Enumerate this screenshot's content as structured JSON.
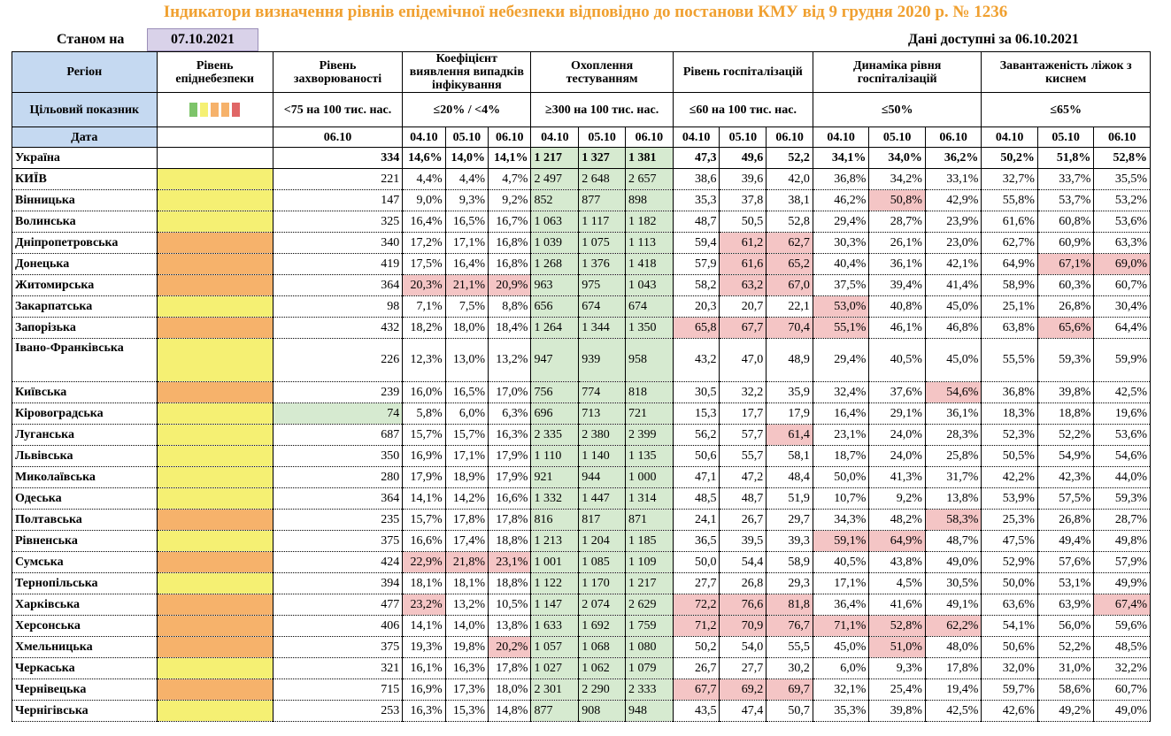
{
  "title": "Індикатори визначення рівнів епідемічної небезпеки відповідно до постанови КМУ від 9 грудня 2020 р. № 1236",
  "as_of_label": "Станом на",
  "as_of_date": "07.10.2021",
  "available_label": "Дані доступні за 06.10.2021",
  "headers": {
    "region": "Регіон",
    "level": "Рівень епіднебезпеки",
    "incidence": "Рівень захворюваності",
    "detection": "Коефіцієнт виявлення випадків інфікування",
    "testing": "Охоплення тестуванням",
    "hosp": "Рівень госпіталізацій",
    "hosp_dyn": "Динаміка рівня госпіталізацій",
    "oxygen": "Завантаженість ліжок з киснем",
    "target_label": "Цільовий показник",
    "incidence_target": "<75 на 100 тис. нас.",
    "detection_target": "≤20% / <4%",
    "testing_target": "≥300 на 100 тис. нас.",
    "hosp_target": "≤60 на 100 тис. нас.",
    "hosp_dyn_target": "≤50%",
    "oxygen_target": "≤65%",
    "date_label": "Дата",
    "d_inc": "06.10",
    "d1": "04.10",
    "d2": "05.10",
    "d3": "06.10"
  },
  "level_colors": [
    "#7dc46a",
    "#f5f073",
    "#f6b26b",
    "#f6b26b",
    "#e06666"
  ],
  "rows": [
    {
      "region": "Україна",
      "level": "",
      "inc": "334",
      "det": [
        "14,6%",
        "14,0%",
        "14,1%"
      ],
      "test": [
        "1 217",
        "1 327",
        "1 381"
      ],
      "hosp": [
        "47,3",
        "49,6",
        "52,2"
      ],
      "dyn": [
        "34,1%",
        "34,0%",
        "36,2%"
      ],
      "oxy": [
        "50,2%",
        "51,8%",
        "52,8%"
      ],
      "red": []
    },
    {
      "region": "КИЇВ",
      "level": "yellow",
      "inc": "221",
      "det": [
        "4,4%",
        "4,4%",
        "4,7%"
      ],
      "test": [
        "2 497",
        "2 648",
        "2 657"
      ],
      "hosp": [
        "38,6",
        "39,6",
        "42,0"
      ],
      "dyn": [
        "36,8%",
        "34,2%",
        "33,1%"
      ],
      "oxy": [
        "32,7%",
        "33,7%",
        "35,5%"
      ],
      "red": []
    },
    {
      "region": "Вінницька",
      "level": "yellow",
      "inc": "147",
      "det": [
        "9,0%",
        "9,3%",
        "9,2%"
      ],
      "test": [
        "852",
        "877",
        "898"
      ],
      "hosp": [
        "35,3",
        "37,8",
        "38,1"
      ],
      "dyn": [
        "46,2%",
        "50,8%",
        "42,9%"
      ],
      "oxy": [
        "55,8%",
        "53,7%",
        "53,2%"
      ],
      "red": [
        "dyn1"
      ]
    },
    {
      "region": "Волинська",
      "level": "yellow",
      "inc": "325",
      "det": [
        "16,4%",
        "16,5%",
        "16,7%"
      ],
      "test": [
        "1 063",
        "1 117",
        "1 182"
      ],
      "hosp": [
        "48,7",
        "50,5",
        "52,8"
      ],
      "dyn": [
        "29,4%",
        "28,7%",
        "23,9%"
      ],
      "oxy": [
        "61,6%",
        "60,8%",
        "53,6%"
      ],
      "red": []
    },
    {
      "region": "Дніпропетровська",
      "level": "orange",
      "inc": "340",
      "det": [
        "17,2%",
        "17,1%",
        "16,8%"
      ],
      "test": [
        "1 039",
        "1 075",
        "1 113"
      ],
      "hosp": [
        "59,4",
        "61,2",
        "62,7"
      ],
      "dyn": [
        "30,3%",
        "26,1%",
        "23,0%"
      ],
      "oxy": [
        "62,7%",
        "60,9%",
        "63,3%"
      ],
      "red": [
        "hosp1",
        "hosp2"
      ]
    },
    {
      "region": "Донецька",
      "level": "orange",
      "inc": "419",
      "det": [
        "17,5%",
        "16,4%",
        "16,8%"
      ],
      "test": [
        "1 268",
        "1 376",
        "1 418"
      ],
      "hosp": [
        "57,9",
        "61,6",
        "65,2"
      ],
      "dyn": [
        "40,4%",
        "36,1%",
        "42,1%"
      ],
      "oxy": [
        "64,9%",
        "67,1%",
        "69,0%"
      ],
      "red": [
        "hosp1",
        "hosp2",
        "oxy1",
        "oxy2"
      ]
    },
    {
      "region": "Житомирська",
      "level": "orange",
      "inc": "364",
      "det": [
        "20,3%",
        "21,1%",
        "20,9%"
      ],
      "test": [
        "963",
        "975",
        "1 043"
      ],
      "hosp": [
        "58,2",
        "63,2",
        "67,0"
      ],
      "dyn": [
        "37,5%",
        "39,4%",
        "41,4%"
      ],
      "oxy": [
        "58,9%",
        "60,3%",
        "60,7%"
      ],
      "red": [
        "det0",
        "det1",
        "det2",
        "hosp1",
        "hosp2"
      ]
    },
    {
      "region": "Закарпатська",
      "level": "yellow",
      "inc": "98",
      "det": [
        "7,1%",
        "7,5%",
        "8,8%"
      ],
      "test": [
        "656",
        "674",
        "674"
      ],
      "hosp": [
        "20,3",
        "20,7",
        "22,1"
      ],
      "dyn": [
        "53,0%",
        "40,8%",
        "45,0%"
      ],
      "oxy": [
        "25,1%",
        "26,8%",
        "30,4%"
      ],
      "red": [
        "dyn0"
      ]
    },
    {
      "region": "Запорізька",
      "level": "orange",
      "inc": "432",
      "det": [
        "18,2%",
        "18,0%",
        "18,4%"
      ],
      "test": [
        "1 264",
        "1 344",
        "1 350"
      ],
      "hosp": [
        "65,8",
        "67,7",
        "70,4"
      ],
      "dyn": [
        "55,1%",
        "46,1%",
        "46,8%"
      ],
      "oxy": [
        "63,8%",
        "65,6%",
        "64,4%"
      ],
      "red": [
        "hosp0",
        "hosp1",
        "hosp2",
        "dyn0",
        "oxy1"
      ]
    },
    {
      "region": "Івано-Франківська",
      "level": "yellow",
      "inc": "226",
      "det": [
        "12,3%",
        "13,0%",
        "13,2%"
      ],
      "test": [
        "947",
        "939",
        "958"
      ],
      "hosp": [
        "43,2",
        "47,0",
        "48,9"
      ],
      "dyn": [
        "29,4%",
        "40,5%",
        "45,0%"
      ],
      "oxy": [
        "55,5%",
        "59,3%",
        "59,9%"
      ],
      "red": [],
      "tall": true
    },
    {
      "region": "Київська",
      "level": "orange",
      "inc": "239",
      "det": [
        "16,0%",
        "16,5%",
        "17,0%"
      ],
      "test": [
        "756",
        "774",
        "818"
      ],
      "hosp": [
        "30,5",
        "32,2",
        "35,9"
      ],
      "dyn": [
        "32,4%",
        "37,6%",
        "54,6%"
      ],
      "oxy": [
        "36,8%",
        "39,8%",
        "42,5%"
      ],
      "red": [
        "dyn2"
      ]
    },
    {
      "region": "Кіровоградська",
      "level": "yellow",
      "inc": "74",
      "det": [
        "5,8%",
        "6,0%",
        "6,3%"
      ],
      "test": [
        "696",
        "713",
        "721"
      ],
      "hosp": [
        "15,3",
        "17,7",
        "17,9"
      ],
      "dyn": [
        "16,4%",
        "29,1%",
        "36,1%"
      ],
      "oxy": [
        "18,3%",
        "18,8%",
        "19,6%"
      ],
      "red": [],
      "inc_green": true
    },
    {
      "region": "Луганська",
      "level": "yellow",
      "inc": "687",
      "det": [
        "15,7%",
        "15,7%",
        "16,3%"
      ],
      "test": [
        "2 335",
        "2 380",
        "2 399"
      ],
      "hosp": [
        "56,2",
        "57,7",
        "61,4"
      ],
      "dyn": [
        "23,1%",
        "24,0%",
        "28,3%"
      ],
      "oxy": [
        "52,3%",
        "52,2%",
        "53,6%"
      ],
      "red": [
        "hosp2"
      ]
    },
    {
      "region": "Львівська",
      "level": "yellow",
      "inc": "350",
      "det": [
        "16,9%",
        "17,1%",
        "17,9%"
      ],
      "test": [
        "1 110",
        "1 140",
        "1 135"
      ],
      "hosp": [
        "50,6",
        "55,7",
        "58,1"
      ],
      "dyn": [
        "18,7%",
        "24,0%",
        "25,8%"
      ],
      "oxy": [
        "50,5%",
        "54,9%",
        "54,6%"
      ],
      "red": []
    },
    {
      "region": "Миколаївська",
      "level": "yellow",
      "inc": "280",
      "det": [
        "17,9%",
        "18,9%",
        "17,9%"
      ],
      "test": [
        "921",
        "944",
        "1 000"
      ],
      "hosp": [
        "47,1",
        "47,2",
        "48,4"
      ],
      "dyn": [
        "50,0%",
        "41,3%",
        "31,7%"
      ],
      "oxy": [
        "42,2%",
        "42,3%",
        "44,0%"
      ],
      "red": []
    },
    {
      "region": "Одеська",
      "level": "yellow",
      "inc": "364",
      "det": [
        "14,1%",
        "14,2%",
        "16,6%"
      ],
      "test": [
        "1 332",
        "1 447",
        "1 314"
      ],
      "hosp": [
        "48,5",
        "48,7",
        "51,9"
      ],
      "dyn": [
        "10,7%",
        "9,2%",
        "13,8%"
      ],
      "oxy": [
        "53,9%",
        "57,5%",
        "59,3%"
      ],
      "red": []
    },
    {
      "region": "Полтавська",
      "level": "orange",
      "inc": "235",
      "det": [
        "15,7%",
        "17,8%",
        "17,8%"
      ],
      "test": [
        "816",
        "817",
        "871"
      ],
      "hosp": [
        "24,1",
        "26,7",
        "29,7"
      ],
      "dyn": [
        "34,3%",
        "48,2%",
        "58,3%"
      ],
      "oxy": [
        "25,3%",
        "26,8%",
        "28,7%"
      ],
      "red": [
        "dyn2"
      ]
    },
    {
      "region": "Рівненська",
      "level": "yellow",
      "inc": "375",
      "det": [
        "16,6%",
        "17,4%",
        "18,8%"
      ],
      "test": [
        "1 213",
        "1 204",
        "1 185"
      ],
      "hosp": [
        "36,5",
        "39,5",
        "39,3"
      ],
      "dyn": [
        "59,1%",
        "64,9%",
        "48,7%"
      ],
      "oxy": [
        "47,5%",
        "49,4%",
        "49,8%"
      ],
      "red": [
        "dyn0",
        "dyn1"
      ]
    },
    {
      "region": "Сумська",
      "level": "orange",
      "inc": "424",
      "det": [
        "22,9%",
        "21,8%",
        "23,1%"
      ],
      "test": [
        "1 001",
        "1 085",
        "1 109"
      ],
      "hosp": [
        "50,0",
        "54,4",
        "58,9"
      ],
      "dyn": [
        "40,5%",
        "43,8%",
        "49,0%"
      ],
      "oxy": [
        "52,9%",
        "57,6%",
        "57,9%"
      ],
      "red": [
        "det0",
        "det1",
        "det2"
      ]
    },
    {
      "region": "Тернопільська",
      "level": "yellow",
      "inc": "394",
      "det": [
        "18,1%",
        "18,1%",
        "18,8%"
      ],
      "test": [
        "1 122",
        "1 170",
        "1 217"
      ],
      "hosp": [
        "27,7",
        "26,8",
        "29,3"
      ],
      "dyn": [
        "17,1%",
        "4,5%",
        "30,5%"
      ],
      "oxy": [
        "50,0%",
        "53,1%",
        "49,9%"
      ],
      "red": []
    },
    {
      "region": "Харківська",
      "level": "orange",
      "inc": "477",
      "det": [
        "23,2%",
        "13,2%",
        "10,5%"
      ],
      "test": [
        "1 147",
        "2 074",
        "2 629"
      ],
      "hosp": [
        "72,2",
        "76,6",
        "81,8"
      ],
      "dyn": [
        "36,4%",
        "41,6%",
        "49,1%"
      ],
      "oxy": [
        "63,6%",
        "63,9%",
        "67,4%"
      ],
      "red": [
        "det0",
        "hosp0",
        "hosp1",
        "hosp2",
        "oxy2"
      ]
    },
    {
      "region": "Херсонська",
      "level": "orange",
      "inc": "406",
      "det": [
        "14,1%",
        "14,0%",
        "13,8%"
      ],
      "test": [
        "1 633",
        "1 692",
        "1 759"
      ],
      "hosp": [
        "71,2",
        "70,9",
        "76,7"
      ],
      "dyn": [
        "71,1%",
        "52,8%",
        "62,2%"
      ],
      "oxy": [
        "54,1%",
        "56,0%",
        "59,6%"
      ],
      "red": [
        "hosp0",
        "hosp1",
        "hosp2",
        "dyn0",
        "dyn1",
        "dyn2"
      ]
    },
    {
      "region": "Хмельницька",
      "level": "orange",
      "inc": "375",
      "det": [
        "19,3%",
        "19,8%",
        "20,2%"
      ],
      "test": [
        "1 057",
        "1 068",
        "1 080"
      ],
      "hosp": [
        "50,2",
        "54,0",
        "55,5"
      ],
      "dyn": [
        "45,0%",
        "51,0%",
        "48,0%"
      ],
      "oxy": [
        "50,6%",
        "52,2%",
        "48,5%"
      ],
      "red": [
        "det2",
        "dyn1"
      ]
    },
    {
      "region": "Черкаська",
      "level": "yellow",
      "inc": "321",
      "det": [
        "16,1%",
        "16,3%",
        "17,8%"
      ],
      "test": [
        "1 027",
        "1 062",
        "1 079"
      ],
      "hosp": [
        "26,7",
        "27,7",
        "30,2"
      ],
      "dyn": [
        "6,0%",
        "9,3%",
        "17,8%"
      ],
      "oxy": [
        "32,0%",
        "31,0%",
        "32,2%"
      ],
      "red": []
    },
    {
      "region": "Чернівецька",
      "level": "orange",
      "inc": "715",
      "det": [
        "16,9%",
        "17,3%",
        "18,0%"
      ],
      "test": [
        "2 301",
        "2 290",
        "2 333"
      ],
      "hosp": [
        "67,7",
        "69,2",
        "69,7"
      ],
      "dyn": [
        "32,1%",
        "25,4%",
        "19,4%"
      ],
      "oxy": [
        "59,7%",
        "58,6%",
        "60,7%"
      ],
      "red": [
        "hosp0",
        "hosp1",
        "hosp2"
      ]
    },
    {
      "region": "Чернігівська",
      "level": "yellow",
      "inc": "253",
      "det": [
        "16,3%",
        "15,3%",
        "14,8%"
      ],
      "test": [
        "877",
        "908",
        "948"
      ],
      "hosp": [
        "43,5",
        "47,4",
        "50,7"
      ],
      "dyn": [
        "35,3%",
        "39,8%",
        "42,5%"
      ],
      "oxy": [
        "42,6%",
        "49,2%",
        "49,0%"
      ],
      "red": []
    }
  ]
}
